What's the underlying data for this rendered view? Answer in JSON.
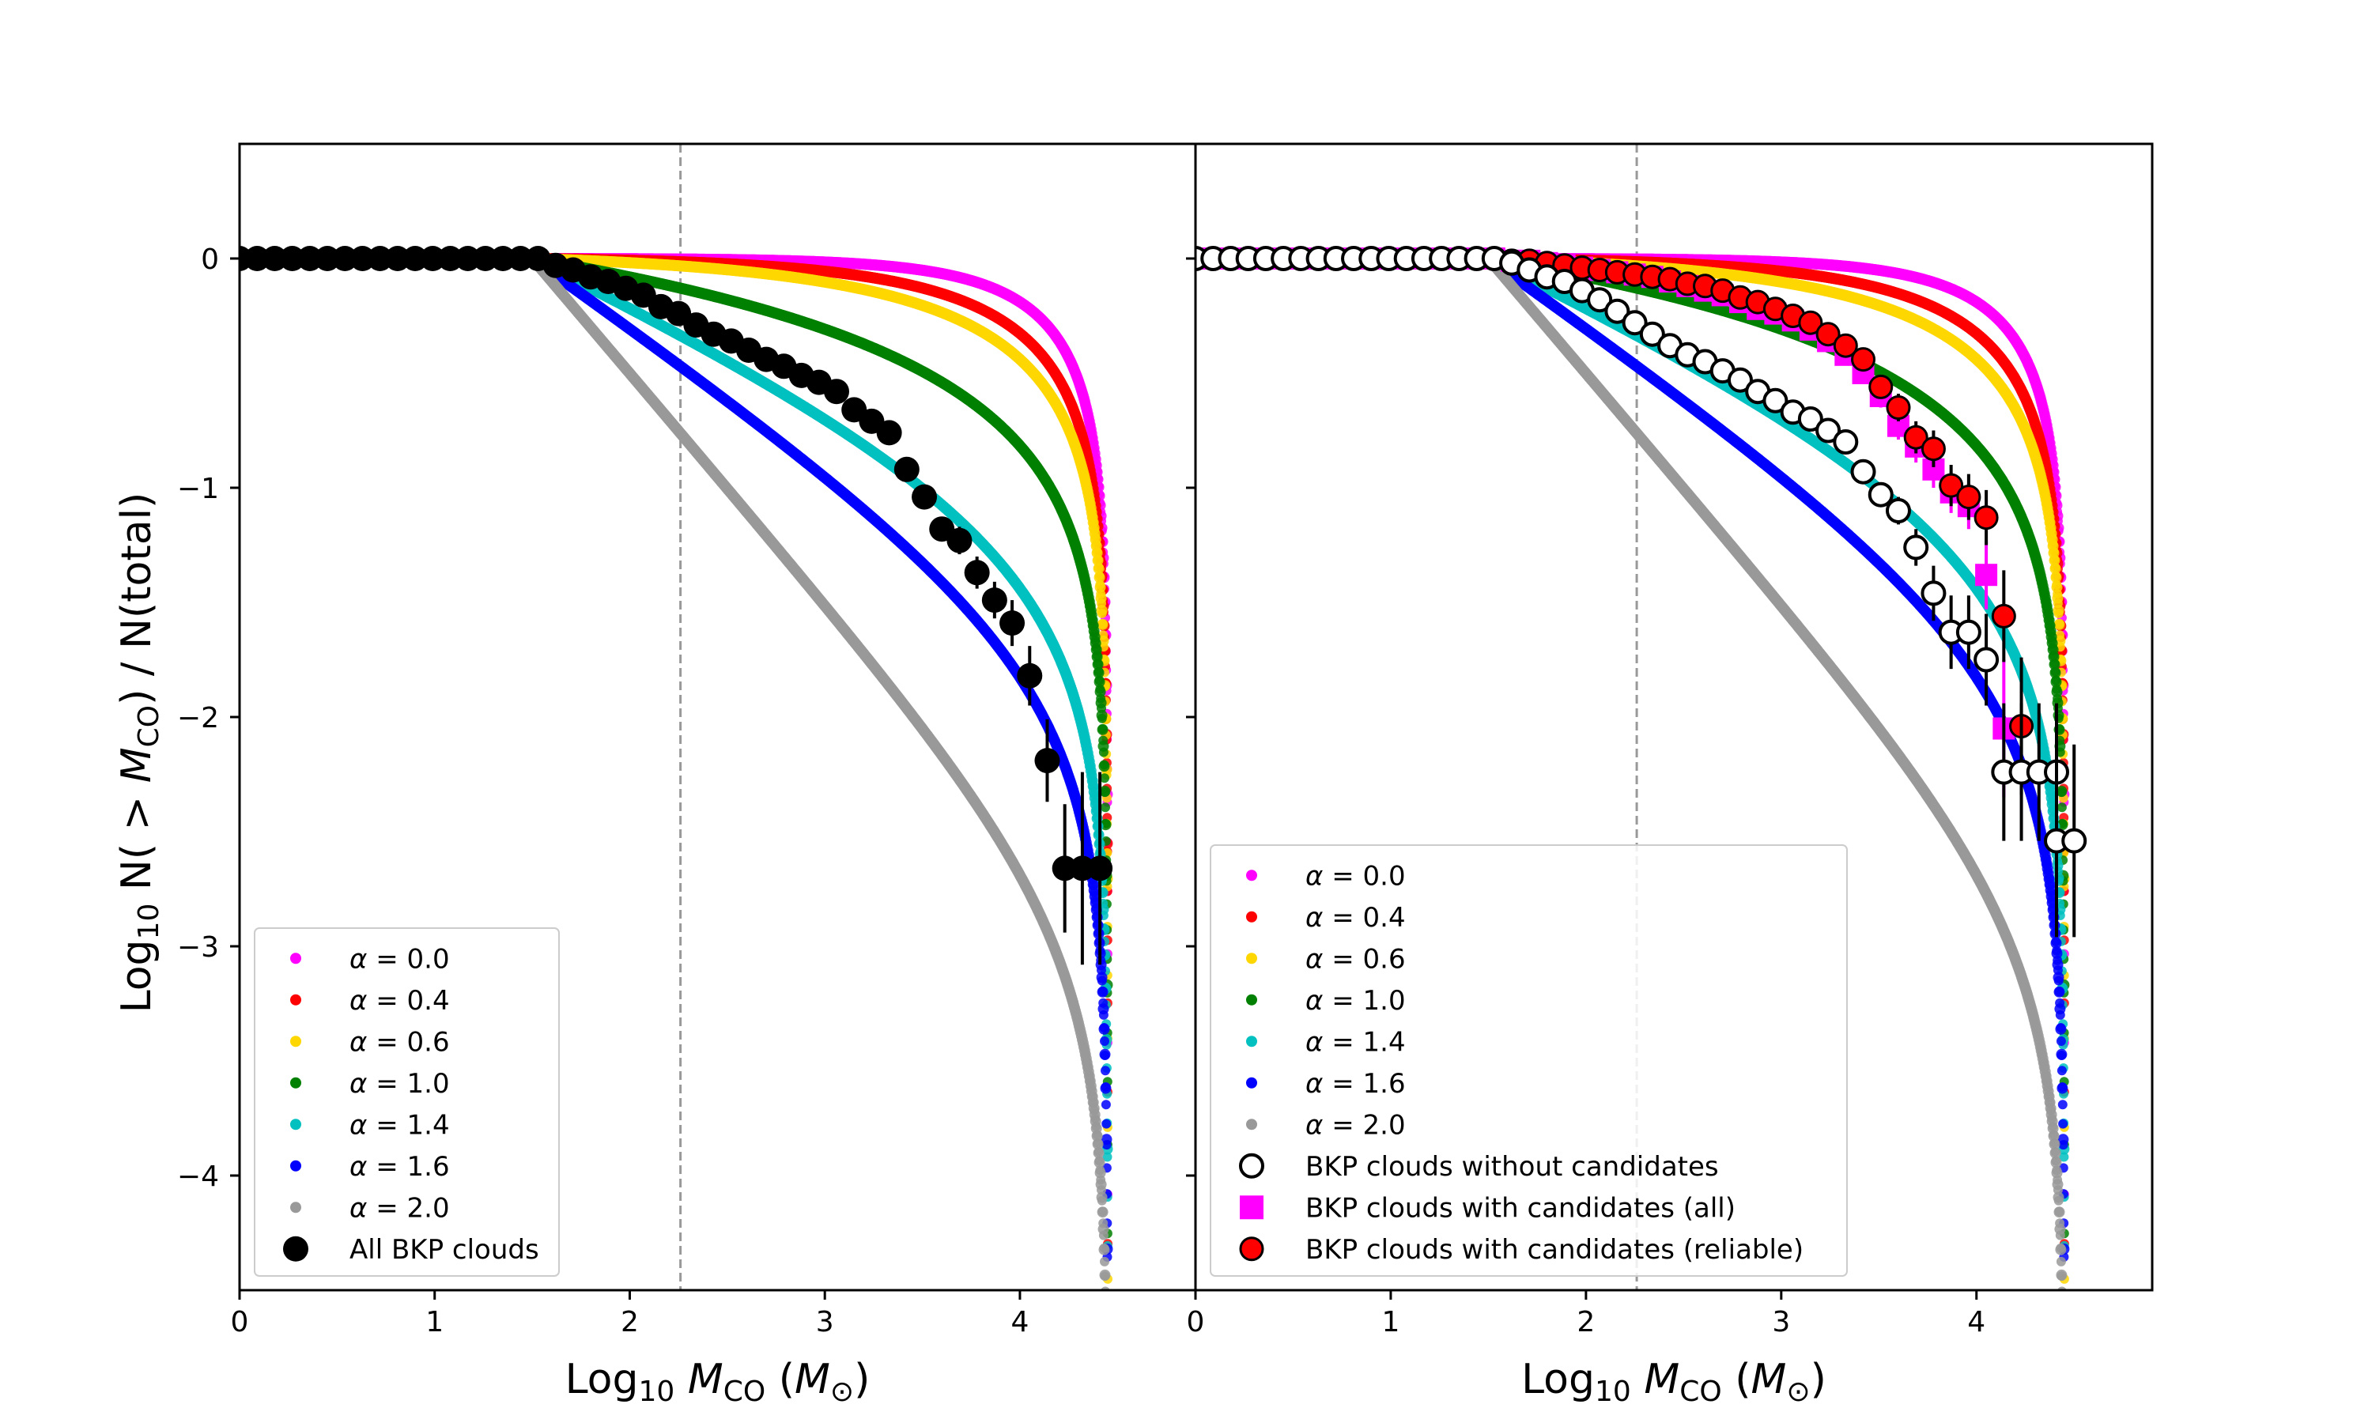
{
  "chart_data": {
    "type": "scatter",
    "xlim": [
      0,
      4.9
    ],
    "ylim": [
      -4.5,
      0.5
    ],
    "x_ticks": [
      0,
      1,
      2,
      3,
      4
    ],
    "y_ticks": [
      0,
      -1,
      -2,
      -3,
      -4
    ],
    "reference_line_x": 2.26,
    "legend_placement": "lower-left",
    "x_label": {
      "prefix": "Log",
      "sub": "10",
      "var": "M",
      "var_sub": "CO",
      "open": "(",
      "unit": "M",
      "unit_sub": "⊙",
      "close": ")"
    },
    "y_label": {
      "prefix": "Log",
      "sub": "10",
      "mid1": " N( > ",
      "var": "M",
      "var_sub": "CO",
      "mid2": ") / N(total)"
    },
    "model_curve_max_mass": 4.45,
    "model_curves": [
      {
        "alpha": "0.0",
        "color": "#ff00ff",
        "power": 0.0
      },
      {
        "alpha": "0.4",
        "color": "#ff0000",
        "power": 0.4
      },
      {
        "alpha": "0.6",
        "color": "#ffd700",
        "power": 0.6
      },
      {
        "alpha": "1.0",
        "color": "#008000",
        "power": 1.0
      },
      {
        "alpha": "1.4",
        "color": "#00c0c0",
        "power": 1.4
      },
      {
        "alpha": "1.6",
        "color": "#0000ff",
        "power": 1.6
      },
      {
        "alpha": "2.0",
        "color": "#999999",
        "power": 2.0
      }
    ],
    "legend_symbol": "α",
    "legend_eq": " = ",
    "panels": [
      {
        "name": "left",
        "legend_extra": [
          {
            "label": "All BKP clouds",
            "marker": "filled-circle",
            "color": "#000000"
          }
        ],
        "data_series": [
          {
            "label": "All BKP clouds",
            "marker": "filled-circle",
            "fill": "#000000",
            "stroke": "#000000",
            "x": [
              0.0,
              0.09,
              0.18,
              0.27,
              0.36,
              0.45,
              0.54,
              0.63,
              0.72,
              0.81,
              0.9,
              0.99,
              1.08,
              1.17,
              1.26,
              1.35,
              1.44,
              1.53,
              1.62,
              1.71,
              1.8,
              1.89,
              1.98,
              2.07,
              2.16,
              2.25,
              2.34,
              2.43,
              2.52,
              2.61,
              2.7,
              2.79,
              2.88,
              2.97,
              3.06,
              3.15,
              3.24,
              3.33,
              3.42,
              3.51,
              3.6,
              3.69,
              3.78,
              3.87,
              3.96,
              4.05,
              4.14,
              4.23,
              4.32,
              4.41
            ],
            "y": [
              0,
              0,
              0,
              0,
              0,
              0,
              0,
              0,
              0,
              0,
              0,
              0,
              0,
              0,
              0,
              0,
              0,
              0,
              -0.03,
              -0.05,
              -0.08,
              -0.1,
              -0.13,
              -0.16,
              -0.21,
              -0.24,
              -0.29,
              -0.33,
              -0.36,
              -0.4,
              -0.44,
              -0.47,
              -0.51,
              -0.54,
              -0.58,
              -0.66,
              -0.71,
              -0.76,
              -0.92,
              -1.04,
              -1.18,
              -1.23,
              -1.37,
              -1.49,
              -1.59,
              -1.82,
              -2.19,
              -2.66,
              -2.66,
              -2.66
            ],
            "err": [
              0,
              0,
              0,
              0,
              0,
              0,
              0,
              0,
              0,
              0,
              0,
              0,
              0,
              0,
              0,
              0,
              0,
              0,
              0,
              0,
              0,
              0,
              0,
              0,
              0,
              0,
              0,
              0,
              0,
              0,
              0,
              0,
              0,
              0,
              0,
              0,
              0,
              0,
              0,
              0.04,
              0.05,
              0.06,
              0.07,
              0.08,
              0.1,
              0.13,
              0.18,
              0.28,
              0.42,
              0.42
            ]
          }
        ]
      },
      {
        "name": "right",
        "legend_extra": [
          {
            "label": "BKP clouds without candidates",
            "marker": "open-circle",
            "color": "#000000"
          },
          {
            "label": "BKP clouds with candidates (all)",
            "marker": "square",
            "color": "#ff00ff"
          },
          {
            "label": "BKP clouds with candidates (reliable)",
            "marker": "red-circle",
            "color": "#ff0000"
          }
        ],
        "data_series": [
          {
            "label": "BKP clouds with candidates (all)",
            "marker": "square",
            "fill": "#ff00ff",
            "stroke": "#ff00ff",
            "x": [
              0.0,
              0.09,
              0.18,
              0.27,
              0.36,
              0.45,
              0.54,
              0.63,
              0.72,
              0.81,
              0.9,
              0.99,
              1.08,
              1.17,
              1.26,
              1.35,
              1.44,
              1.53,
              1.62,
              1.71,
              1.8,
              1.89,
              1.98,
              2.07,
              2.16,
              2.25,
              2.34,
              2.43,
              2.52,
              2.61,
              2.7,
              2.79,
              2.88,
              2.97,
              3.06,
              3.15,
              3.24,
              3.33,
              3.42,
              3.51,
              3.6,
              3.69,
              3.78,
              3.87,
              3.96,
              4.05,
              4.14
            ],
            "y": [
              0,
              0,
              0,
              0,
              0,
              0,
              0,
              0,
              0,
              0,
              0,
              0,
              0,
              0,
              0,
              0,
              0,
              0,
              -0.01,
              -0.01,
              -0.02,
              -0.03,
              -0.04,
              -0.05,
              -0.06,
              -0.07,
              -0.08,
              -0.1,
              -0.12,
              -0.14,
              -0.16,
              -0.19,
              -0.22,
              -0.24,
              -0.27,
              -0.31,
              -0.36,
              -0.42,
              -0.5,
              -0.6,
              -0.73,
              -0.82,
              -0.92,
              -1.02,
              -1.08,
              -1.38,
              -2.05
            ],
            "err": [
              0,
              0,
              0,
              0,
              0,
              0,
              0,
              0,
              0,
              0,
              0,
              0,
              0,
              0,
              0,
              0,
              0,
              0,
              0,
              0,
              0,
              0,
              0,
              0,
              0,
              0,
              0,
              0,
              0,
              0,
              0,
              0,
              0,
              0,
              0,
              0,
              0.02,
              0.03,
              0.04,
              0.05,
              0.06,
              0.07,
              0.08,
              0.09,
              0.1,
              0.15,
              0.3
            ]
          },
          {
            "label": "BKP clouds with candidates (reliable)",
            "marker": "red-circle",
            "fill": "#ff0000",
            "stroke": "#000000",
            "x": [
              0.0,
              0.09,
              0.18,
              0.27,
              0.36,
              0.45,
              0.54,
              0.63,
              0.72,
              0.81,
              0.9,
              0.99,
              1.08,
              1.17,
              1.26,
              1.35,
              1.44,
              1.53,
              1.62,
              1.71,
              1.8,
              1.89,
              1.98,
              2.07,
              2.16,
              2.25,
              2.34,
              2.43,
              2.52,
              2.61,
              2.7,
              2.79,
              2.88,
              2.97,
              3.06,
              3.15,
              3.24,
              3.33,
              3.42,
              3.51,
              3.6,
              3.69,
              3.78,
              3.87,
              3.96,
              4.05,
              4.14,
              4.23
            ],
            "y": [
              0,
              0,
              0,
              0,
              0,
              0,
              0,
              0,
              0,
              0,
              0,
              0,
              0,
              0,
              0,
              0,
              0,
              0,
              -0.01,
              -0.01,
              -0.02,
              -0.03,
              -0.04,
              -0.05,
              -0.06,
              -0.07,
              -0.08,
              -0.09,
              -0.11,
              -0.12,
              -0.14,
              -0.17,
              -0.19,
              -0.22,
              -0.25,
              -0.28,
              -0.33,
              -0.38,
              -0.44,
              -0.56,
              -0.65,
              -0.78,
              -0.83,
              -0.99,
              -1.04,
              -1.13,
              -1.56,
              -2.04
            ],
            "err": [
              0,
              0,
              0,
              0,
              0,
              0,
              0,
              0,
              0,
              0,
              0,
              0,
              0,
              0,
              0,
              0,
              0,
              0,
              0,
              0,
              0,
              0,
              0,
              0,
              0,
              0,
              0,
              0,
              0,
              0,
              0,
              0,
              0,
              0,
              0,
              0,
              0.02,
              0.03,
              0.04,
              0.05,
              0.06,
              0.07,
              0.08,
              0.09,
              0.1,
              0.12,
              0.2,
              0.3
            ]
          },
          {
            "label": "BKP clouds without candidates",
            "marker": "open-circle",
            "fill": "#ffffff",
            "stroke": "#000000",
            "x": [
              0.0,
              0.09,
              0.18,
              0.27,
              0.36,
              0.45,
              0.54,
              0.63,
              0.72,
              0.81,
              0.9,
              0.99,
              1.08,
              1.17,
              1.26,
              1.35,
              1.44,
              1.53,
              1.62,
              1.71,
              1.8,
              1.89,
              1.98,
              2.07,
              2.16,
              2.25,
              2.34,
              2.43,
              2.52,
              2.61,
              2.7,
              2.79,
              2.88,
              2.97,
              3.06,
              3.15,
              3.24,
              3.33,
              3.42,
              3.51,
              3.6,
              3.69,
              3.78,
              3.87,
              3.96,
              4.05,
              4.14,
              4.23,
              4.32,
              4.41
            ],
            "y": [
              0,
              0,
              0,
              0,
              0,
              0,
              0,
              0,
              0,
              0,
              0,
              0,
              0,
              0,
              0,
              0,
              0,
              0,
              -0.02,
              -0.05,
              -0.08,
              -0.1,
              -0.14,
              -0.18,
              -0.23,
              -0.28,
              -0.33,
              -0.38,
              -0.42,
              -0.45,
              -0.49,
              -0.53,
              -0.58,
              -0.62,
              -0.67,
              -0.7,
              -0.75,
              -0.8,
              -0.93,
              -1.03,
              -1.1,
              -1.26,
              -1.46,
              -1.63,
              -1.63,
              -1.75,
              -2.24,
              -2.24,
              -2.24,
              -2.24
            ],
            "err": [
              0,
              0,
              0,
              0,
              0,
              0,
              0,
              0,
              0,
              0,
              0,
              0,
              0,
              0,
              0,
              0,
              0,
              0,
              0,
              0,
              0,
              0,
              0,
              0,
              0,
              0,
              0,
              0,
              0,
              0,
              0,
              0,
              0,
              0,
              0,
              0,
              0,
              0,
              0.04,
              0.05,
              0.06,
              0.08,
              0.12,
              0.16,
              0.16,
              0.2,
              0.3,
              0.3,
              0.3,
              0.3
            ]
          },
          {
            "label": "BKP clouds without candidates (tail)",
            "marker": "open-circle",
            "fill": "#ffffff",
            "stroke": "#000000",
            "x": [
              4.41,
              4.5
            ],
            "y": [
              -2.54,
              -2.54
            ],
            "err": [
              0.42,
              0.42
            ]
          }
        ]
      }
    ]
  }
}
